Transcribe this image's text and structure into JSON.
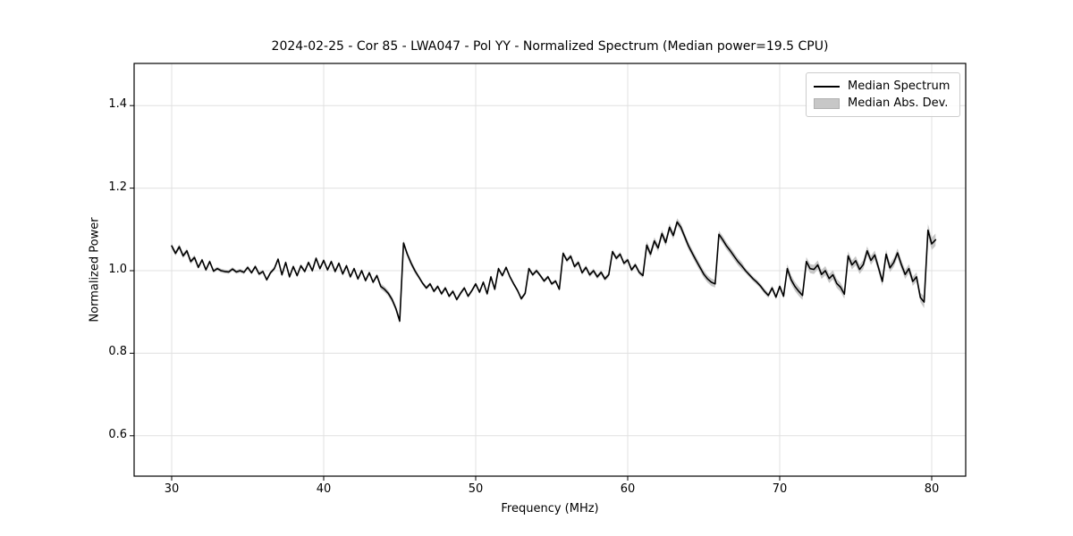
{
  "figure": {
    "background": "#ffffff"
  },
  "chart_data": {
    "type": "line",
    "title": "2024-02-25 - Cor 85 - LWA047 - Pol YY - Normalized Spectrum (Median power=19.5 CPU)",
    "xlabel": "Frequency (MHz)",
    "ylabel": "Normalized Power",
    "xlim": [
      27.5,
      82.3
    ],
    "ylim": [
      0.5,
      1.5
    ],
    "x_ticks": [
      30,
      40,
      50,
      60,
      70,
      80
    ],
    "y_ticks": [
      0.6,
      0.8,
      1.0,
      1.2,
      1.4
    ],
    "grid": true,
    "legend_position": "upper right",
    "colors": {
      "line": "#000000",
      "band": "#c7c7c7",
      "grid": "#e0e0e0",
      "spine": "#000000"
    },
    "series": [
      {
        "name": "Median Spectrum",
        "kind": "line",
        "x_start": 30.0,
        "x_step": 0.25,
        "values": [
          1.06,
          1.042,
          1.058,
          1.036,
          1.048,
          1.022,
          1.032,
          1.008,
          1.026,
          1.002,
          1.022,
          0.999,
          1.005,
          1.0,
          0.998,
          0.997,
          1.004,
          0.997,
          1.0,
          0.996,
          1.008,
          0.995,
          1.01,
          0.992,
          0.998,
          0.978,
          0.995,
          1.005,
          1.028,
          0.99,
          1.02,
          0.985,
          1.01,
          0.988,
          1.012,
          0.998,
          1.02,
          1.0,
          1.03,
          1.005,
          1.025,
          1.002,
          1.022,
          0.998,
          1.018,
          0.992,
          1.012,
          0.985,
          1.005,
          0.98,
          1.0,
          0.976,
          0.995,
          0.972,
          0.988,
          0.962,
          0.955,
          0.945,
          0.93,
          0.908,
          0.878,
          1.067,
          1.04,
          1.018,
          1.0,
          0.985,
          0.97,
          0.958,
          0.968,
          0.95,
          0.962,
          0.944,
          0.958,
          0.938,
          0.95,
          0.93,
          0.945,
          0.958,
          0.938,
          0.952,
          0.968,
          0.948,
          0.972,
          0.944,
          0.985,
          0.955,
          1.005,
          0.988,
          1.008,
          0.985,
          0.968,
          0.952,
          0.932,
          0.945,
          1.005,
          0.99,
          1.0,
          0.988,
          0.975,
          0.985,
          0.968,
          0.975,
          0.955,
          1.042,
          1.025,
          1.035,
          1.01,
          1.02,
          0.995,
          1.008,
          0.99,
          1.0,
          0.985,
          0.996,
          0.98,
          0.99,
          1.046,
          1.03,
          1.04,
          1.018,
          1.026,
          1.002,
          1.014,
          0.996,
          0.988,
          1.062,
          1.04,
          1.072,
          1.055,
          1.09,
          1.068,
          1.105,
          1.085,
          1.118,
          1.105,
          1.082,
          1.06,
          1.042,
          1.025,
          1.008,
          0.992,
          0.98,
          0.972,
          0.968,
          1.088,
          1.075,
          1.06,
          1.048,
          1.035,
          1.022,
          1.012,
          1.0,
          0.99,
          0.98,
          0.972,
          0.962,
          0.95,
          0.94,
          0.958,
          0.936,
          0.962,
          0.938,
          1.005,
          0.978,
          0.962,
          0.95,
          0.94,
          1.022,
          1.005,
          1.003,
          1.014,
          0.991,
          1.0,
          0.981,
          0.99,
          0.969,
          0.96,
          0.943,
          1.036,
          1.014,
          1.024,
          1.003,
          1.015,
          1.048,
          1.025,
          1.038,
          1.007,
          0.974,
          1.04,
          1.007,
          1.02,
          1.043,
          1.015,
          0.991,
          1.005,
          0.974,
          0.985,
          0.935,
          0.924,
          1.098,
          1.065,
          1.075
        ]
      },
      {
        "name": "Median Abs. Dev.",
        "kind": "band",
        "around": "Median Spectrum",
        "mad_segments": [
          [
            30.0,
            31.5,
            0.006
          ],
          [
            31.5,
            43.5,
            0.0045
          ],
          [
            43.5,
            46.0,
            0.007
          ],
          [
            46.0,
            55.5,
            0.0045
          ],
          [
            55.5,
            61.0,
            0.0055
          ],
          [
            61.0,
            67.5,
            0.009
          ],
          [
            67.5,
            70.3,
            0.006
          ],
          [
            70.3,
            79.4,
            0.011
          ],
          [
            79.4,
            80.3,
            0.015
          ]
        ]
      }
    ]
  }
}
